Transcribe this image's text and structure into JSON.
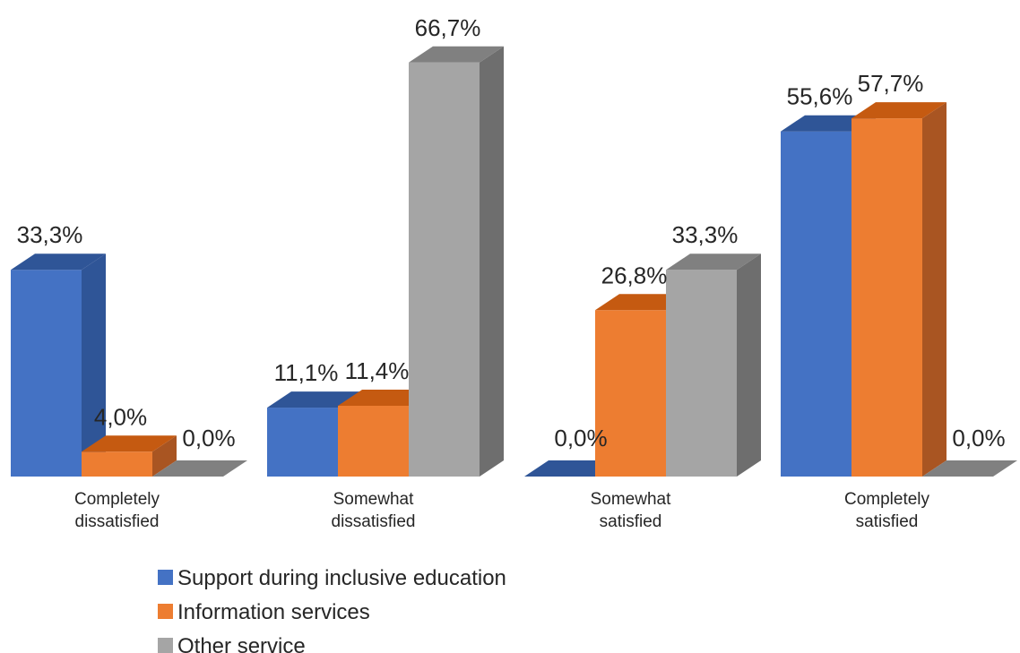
{
  "chart_data": {
    "type": "bar",
    "style": "3d-clustered-column",
    "categories": [
      [
        "Completely",
        "dissatisfied"
      ],
      [
        "Somewhat",
        "dissatisfied"
      ],
      [
        "Somewhat",
        "satisfied"
      ],
      [
        "Completely",
        "satisfied"
      ]
    ],
    "series": [
      {
        "name": "Support during inclusive education",
        "values": [
          33.3,
          11.1,
          0.0,
          55.6
        ],
        "labels": [
          "33,3%",
          "11,1%",
          "0,0%",
          "55,6%"
        ],
        "color": "#4472C4",
        "side_color": "#2F5597",
        "top_color": "#2F5597"
      },
      {
        "name": "Information services",
        "values": [
          4.0,
          11.4,
          26.8,
          57.7
        ],
        "labels": [
          "4,0%",
          "11,4%",
          "26,8%",
          "57,7%"
        ],
        "color": "#ED7D31",
        "side_color": "#A95522",
        "top_color": "#C55A11"
      },
      {
        "name": "Other service",
        "values": [
          0.0,
          66.7,
          33.3,
          0.0
        ],
        "labels": [
          "0,0%",
          "66,7%",
          "33,3%",
          "0,0%"
        ],
        "color": "#A5A5A5",
        "side_color": "#6E6E6E",
        "top_color": "#808080"
      }
    ],
    "ylim": [
      0,
      70
    ],
    "grid": false,
    "legend_position": "bottom"
  }
}
